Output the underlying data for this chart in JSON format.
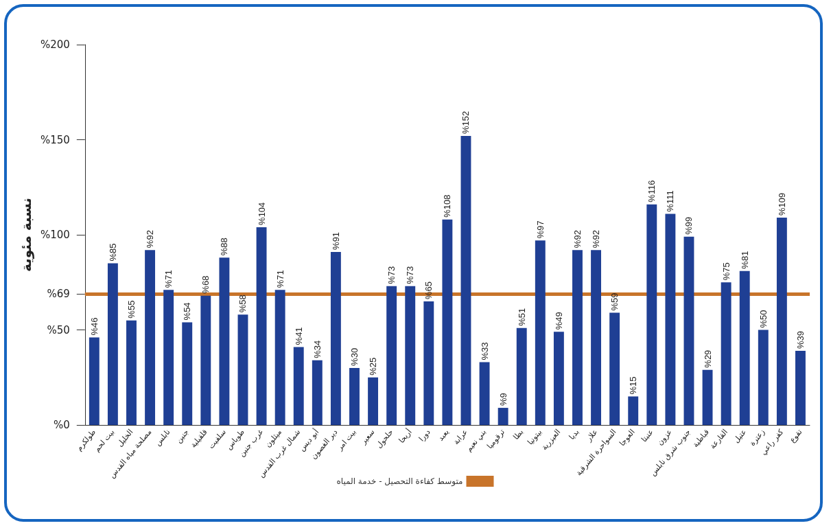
{
  "chart_data": {
    "type": "bar",
    "ylabel": "نسبة مئوية",
    "categories": [
      "طولكرم",
      "بيت لحم",
      "الخليل",
      "مصلحة مياه القدس",
      "نابلس",
      "جنين",
      "قلقيلية",
      "سلفيت",
      "طوباس",
      "غرب جنين",
      "ميثلون",
      "شمال غرب القدس",
      "أبو ديس",
      "دير الغصون",
      "بيت امر",
      "سعير",
      "حلحول",
      "أريحا",
      "دورا",
      "يعبد",
      "عرابة",
      "بني نعيم",
      "ترقوميا",
      "بطا",
      "بيتونيا",
      "العيزرية",
      "بديا",
      "علار",
      "السواحرة الشرقية",
      "العوجا",
      "عنبتا",
      "عزون",
      "جنوب شرق نابلس",
      "قباطية",
      "القارعة",
      "عتيل",
      "زعترة",
      "كفر راعي",
      "تقوع"
    ],
    "values": [
      46,
      85,
      55,
      92,
      71,
      54,
      68,
      88,
      58,
      104,
      71,
      41,
      34,
      91,
      30,
      25,
      73,
      73,
      65,
      108,
      152,
      33,
      9,
      51,
      97,
      49,
      92,
      92,
      59,
      15,
      116,
      111,
      99,
      29,
      75,
      81,
      50,
      109,
      39
    ],
    "value_labels": [
      "%46",
      "%85",
      "%55",
      "%92",
      "%71",
      "%54",
      "%68",
      "%88",
      "%58",
      "%104",
      "%71",
      "%41",
      "%34",
      "%91",
      "%30",
      "%25",
      "%73",
      "%73",
      "%65",
      "%108",
      "%152",
      "%33",
      "%9",
      "%51",
      "%97",
      "%49",
      "%92",
      "%92",
      "%59",
      "%15",
      "%116",
      "%111",
      "%99",
      "%29",
      "%75",
      "%81",
      "%50",
      "%109",
      "%39"
    ],
    "color": "#1f3f94",
    "ylim": [
      0,
      200
    ],
    "yticks": [
      {
        "value": 0,
        "label": "%0"
      },
      {
        "value": 50,
        "label": "%50"
      },
      {
        "value": 69,
        "label": "%69"
      },
      {
        "value": 100,
        "label": "%100"
      },
      {
        "value": 150,
        "label": "%150"
      },
      {
        "value": 200,
        "label": "%200"
      }
    ],
    "ref_lines": [
      {
        "axis": "y",
        "value": 69,
        "label": "متوسط كفاءة التحصيل - خدمة المياه",
        "color": "#c8742a",
        "line_style": "solid"
      }
    ],
    "legend": "bottom",
    "grid": false
  }
}
